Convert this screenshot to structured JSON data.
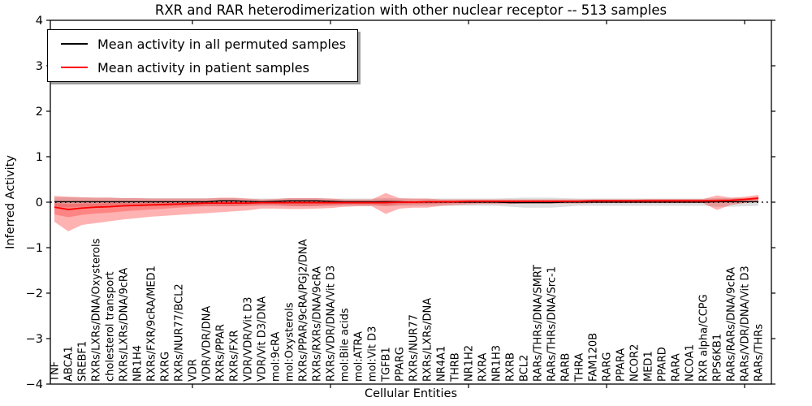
{
  "title": "RXR and RAR heterodimerization with other nuclear receptor -- 513 samples",
  "axes": {
    "y_label": "Inferred Activity",
    "x_label": "Cellular Entities",
    "y_tick_labels": [
      "4",
      "3",
      "2",
      "1",
      "0",
      "−1",
      "−2",
      "−3",
      "−4"
    ],
    "y_tick_values": [
      4,
      3,
      2,
      1,
      0,
      -1,
      -2,
      -3,
      -4
    ]
  },
  "legend": {
    "items": [
      {
        "label": "Mean activity in all permuted samples",
        "color": "#000000"
      },
      {
        "label": "Mean activity in patient samples",
        "color": "#ff0000"
      }
    ]
  },
  "colors": {
    "patient_line": "#ff0000",
    "permuted_line": "#000000",
    "zero_line": "#000000",
    "patient_band_outer": "rgba(255,0,0,0.30)",
    "patient_band_inner": "rgba(255,0,0,0.25)",
    "permuted_band": "rgba(0,0,0,0.13)",
    "frame": "#000000"
  },
  "chart_data": {
    "type": "line",
    "title": "RXR and RAR heterodimerization with other nuclear receptor -- 513 samples",
    "xlabel": "Cellular Entities",
    "ylabel": "Inferred Activity",
    "ylim": [
      -4,
      4
    ],
    "grid": false,
    "legend_position": "upper left",
    "categories": [
      "TNF",
      "ABCA1",
      "SREBF1",
      "RXRs/LXRs/DNA/Oxysterols",
      "cholesterol transport",
      "RXRs/LXRs/DNA/9cRA",
      "NR1H4",
      "RXRs/FXR/9cRA/MED1",
      "RXRG",
      "RXRs/NUR77/BCL2",
      "VDR",
      "VDR/VDR/DNA",
      "RXRs/PPAR",
      "RXRs/FXR",
      "VDR/VDR/Vit D3",
      "VDR/Vit D3/DNA",
      "mol:9cRA",
      "mol:Oxysterols",
      "RXRs/PPAR/9cRA/PGJ2/DNA",
      "RXRs/RXRs/DNA/9cRA",
      "RXRs/VDR/DNA/Vit D3",
      "mol:Bile acids",
      "mol:ATRA",
      "mol:Vit D3",
      "TGFB1",
      "PPARG",
      "RXRs/NUR77",
      "RXRs/LXRs/DNA",
      "NR4A1",
      "THRB",
      "NR1H2",
      "RXRA",
      "NR1H3",
      "RXRB",
      "BCL2",
      "RARs/THRs/DNA/SMRT",
      "RARs/THRs/DNA/Src-1",
      "RARB",
      "THRA",
      "FAM120B",
      "RARG",
      "PPARA",
      "NCOR2",
      "MED1",
      "PPARD",
      "RARA",
      "NCOA1",
      "RXR alpha/CCPG",
      "RPS6KB1",
      "RARs/RARs/DNA/9cRA",
      "RARs/VDR/DNA/Vit D3",
      "RARs/THRs"
    ],
    "series": [
      {
        "name": "Mean activity in all permuted samples",
        "role": "permuted_mean",
        "values": [
          0.01,
          0.01,
          0.01,
          0.01,
          0.01,
          0.01,
          0.01,
          0.01,
          0.01,
          0.01,
          0.01,
          0.01,
          0.03,
          0.03,
          0.02,
          0.01,
          0.02,
          0.03,
          0.03,
          0.03,
          0.02,
          0.01,
          0.01,
          0.01,
          0.01,
          0.01,
          0.0,
          0.0,
          0.0,
          0.0,
          0.0,
          0.0,
          0.0,
          -0.01,
          -0.01,
          -0.01,
          -0.01,
          0.0,
          0.0,
          0.0,
          0.0,
          0.0,
          0.0,
          0.0,
          0.0,
          0.0,
          0.0,
          0.0,
          0.01,
          0.01,
          0.01,
          0.01
        ]
      },
      {
        "name": "permuted band upper",
        "role": "permuted_hi",
        "values": [
          0.1,
          0.11,
          0.1,
          0.1,
          0.1,
          0.09,
          0.09,
          0.09,
          0.09,
          0.09,
          0.09,
          0.09,
          0.09,
          0.09,
          0.08,
          0.08,
          0.08,
          0.09,
          0.09,
          0.09,
          0.08,
          0.08,
          0.08,
          0.08,
          0.09,
          0.08,
          0.08,
          0.08,
          0.08,
          0.08,
          0.08,
          0.08,
          0.08,
          0.09,
          0.1,
          0.1,
          0.1,
          0.09,
          0.08,
          0.08,
          0.08,
          0.08,
          0.08,
          0.08,
          0.08,
          0.08,
          0.08,
          0.08,
          0.09,
          0.09,
          0.09,
          0.09
        ]
      },
      {
        "name": "permuted band lower",
        "role": "permuted_lo",
        "values": [
          -0.1,
          -0.11,
          -0.1,
          -0.1,
          -0.1,
          -0.09,
          -0.09,
          -0.09,
          -0.09,
          -0.09,
          -0.09,
          -0.09,
          -0.09,
          -0.09,
          -0.08,
          -0.08,
          -0.08,
          -0.09,
          -0.09,
          -0.09,
          -0.08,
          -0.08,
          -0.08,
          -0.08,
          -0.09,
          -0.08,
          -0.08,
          -0.08,
          -0.08,
          -0.08,
          -0.08,
          -0.08,
          -0.08,
          -0.1,
          -0.12,
          -0.12,
          -0.12,
          -0.1,
          -0.08,
          -0.08,
          -0.08,
          -0.08,
          -0.08,
          -0.08,
          -0.08,
          -0.08,
          -0.08,
          -0.08,
          -0.1,
          -0.1,
          -0.09,
          -0.08
        ]
      },
      {
        "name": "Mean activity in patient samples",
        "role": "patient_mean",
        "values": [
          -0.11,
          -0.16,
          -0.13,
          -0.11,
          -0.1,
          -0.08,
          -0.07,
          -0.06,
          -0.05,
          -0.04,
          -0.03,
          -0.02,
          -0.02,
          -0.02,
          -0.02,
          -0.01,
          -0.01,
          -0.01,
          -0.01,
          -0.01,
          -0.01,
          -0.01,
          -0.01,
          -0.01,
          -0.01,
          0.0,
          0.0,
          0.01,
          0.01,
          0.01,
          0.02,
          0.02,
          0.02,
          0.02,
          0.02,
          0.02,
          0.02,
          0.02,
          0.02,
          0.03,
          0.03,
          0.03,
          0.03,
          0.03,
          0.03,
          0.03,
          0.03,
          0.03,
          0.03,
          0.04,
          0.06,
          0.09
        ]
      },
      {
        "name": "patient outer band upper",
        "role": "patient_outer_hi",
        "values": [
          0.14,
          0.12,
          0.11,
          0.1,
          0.1,
          0.09,
          0.09,
          0.08,
          0.08,
          0.08,
          0.08,
          0.08,
          0.1,
          0.1,
          0.08,
          0.06,
          0.07,
          0.09,
          0.09,
          0.09,
          0.08,
          0.06,
          0.06,
          0.06,
          0.2,
          0.09,
          0.08,
          0.08,
          0.06,
          0.06,
          0.06,
          0.06,
          0.06,
          0.06,
          0.06,
          0.06,
          0.06,
          0.06,
          0.06,
          0.06,
          0.06,
          0.06,
          0.06,
          0.07,
          0.07,
          0.07,
          0.07,
          0.07,
          0.15,
          0.1,
          0.12,
          0.16
        ]
      },
      {
        "name": "patient outer band lower",
        "role": "patient_outer_lo",
        "values": [
          -0.43,
          -0.64,
          -0.5,
          -0.46,
          -0.42,
          -0.38,
          -0.35,
          -0.32,
          -0.3,
          -0.28,
          -0.26,
          -0.24,
          -0.22,
          -0.2,
          -0.18,
          -0.14,
          -0.14,
          -0.15,
          -0.15,
          -0.14,
          -0.13,
          -0.1,
          -0.09,
          -0.09,
          -0.26,
          -0.14,
          -0.12,
          -0.12,
          -0.08,
          -0.06,
          -0.05,
          -0.04,
          -0.04,
          -0.04,
          -0.03,
          -0.03,
          -0.03,
          -0.03,
          -0.03,
          -0.02,
          -0.02,
          -0.02,
          -0.02,
          -0.02,
          -0.02,
          -0.02,
          -0.02,
          -0.02,
          -0.17,
          -0.06,
          -0.02,
          0.02
        ]
      },
      {
        "name": "patient inner band upper",
        "role": "patient_inner_hi",
        "values": [
          -0.02,
          -0.04,
          -0.03,
          -0.03,
          -0.02,
          -0.02,
          -0.02,
          -0.01,
          -0.01,
          -0.01,
          0.0,
          0.01,
          0.03,
          0.03,
          0.02,
          0.02,
          0.02,
          0.03,
          0.04,
          0.04,
          0.03,
          0.02,
          0.02,
          0.02,
          0.05,
          0.03,
          0.03,
          0.03,
          0.03,
          0.03,
          0.04,
          0.04,
          0.04,
          0.04,
          0.04,
          0.04,
          0.04,
          0.04,
          0.04,
          0.05,
          0.05,
          0.05,
          0.05,
          0.05,
          0.05,
          0.05,
          0.05,
          0.05,
          0.07,
          0.07,
          0.09,
          0.12
        ]
      },
      {
        "name": "patient inner band lower",
        "role": "patient_inner_lo",
        "values": [
          -0.27,
          -0.33,
          -0.28,
          -0.25,
          -0.23,
          -0.2,
          -0.18,
          -0.16,
          -0.14,
          -0.12,
          -0.1,
          -0.09,
          -0.09,
          -0.09,
          -0.08,
          -0.06,
          -0.06,
          -0.08,
          -0.09,
          -0.08,
          -0.07,
          -0.05,
          -0.05,
          -0.05,
          -0.08,
          -0.05,
          -0.04,
          -0.04,
          -0.03,
          -0.02,
          -0.02,
          -0.01,
          -0.01,
          -0.01,
          -0.01,
          -0.01,
          -0.01,
          0.0,
          0.0,
          0.0,
          0.0,
          0.0,
          0.01,
          0.01,
          0.01,
          0.01,
          0.01,
          0.01,
          -0.01,
          0.01,
          0.03,
          0.05
        ]
      },
      {
        "name": "zero reference",
        "role": "zero_line",
        "value": 0
      }
    ]
  }
}
